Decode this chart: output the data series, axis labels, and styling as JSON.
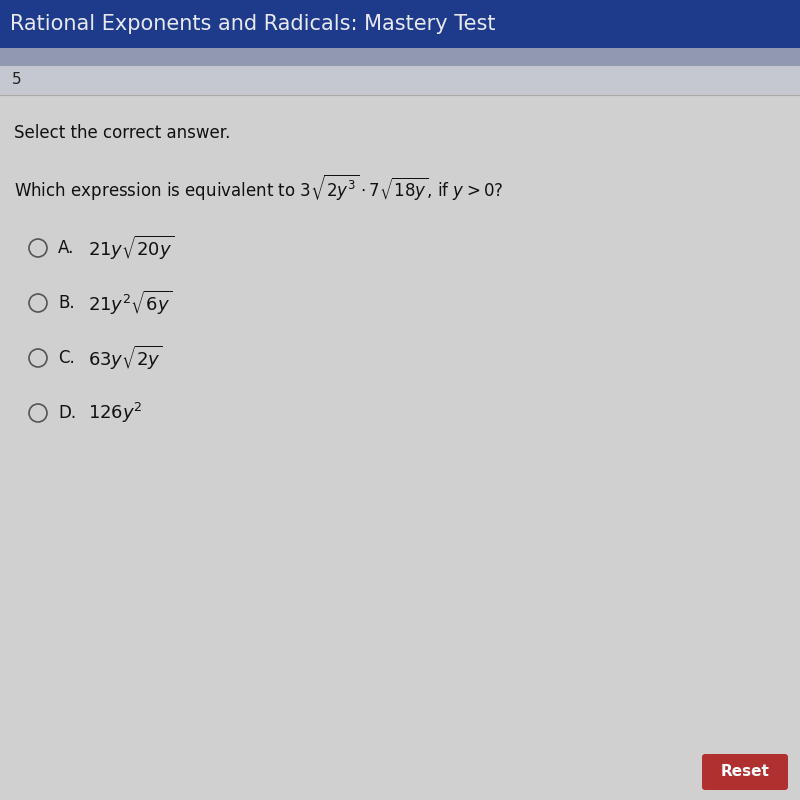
{
  "title": "Rational Exponents and Radicals: Mastery Test",
  "title_bg_color": "#1e3a8a",
  "title_text_color": "#e8e8f0",
  "question_number": "5",
  "instruction": "Select the correct answer.",
  "bg_color": "#c8c8c8",
  "header_strip_color": "#9099b0",
  "num_bar_color": "#c5c8d0",
  "content_bg_color": "#d0d0d0",
  "reset_button_color": "#b03030",
  "reset_text_color": "#ffffff",
  "font_size_title": 15,
  "font_size_question": 12,
  "font_size_options": 12,
  "option_labels": [
    "A.",
    "B.",
    "C.",
    "D."
  ],
  "option_exprs": [
    "21y\\sqrt{20y}",
    "21y^2\\sqrt{6y}",
    "63y\\sqrt{2y}",
    "126y^2"
  ]
}
